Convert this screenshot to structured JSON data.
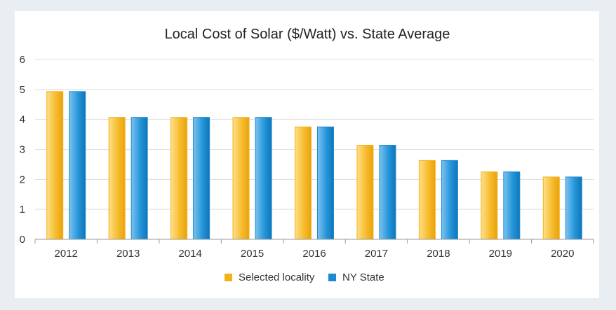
{
  "colors": {
    "background": "#e9eef2",
    "panel": "#ffffff",
    "grid": "#dddddd",
    "axis": "#999999"
  },
  "chart_data": {
    "type": "bar",
    "title": "Local Cost of Solar ($/Watt) vs. State Average",
    "xlabel": "",
    "ylabel": "",
    "ylim": [
      0,
      6
    ],
    "yticks": [
      "0",
      "1",
      "2",
      "3",
      "4",
      "5",
      "6"
    ],
    "grid": true,
    "legend_position": "bottom",
    "categories": [
      "2012",
      "2013",
      "2014",
      "2015",
      "2016",
      "2017",
      "2018",
      "2019",
      "2020"
    ],
    "series": [
      {
        "name": "Selected locality",
        "color": "#f5b11a",
        "values": [
          4.93,
          4.07,
          4.07,
          4.07,
          3.75,
          3.14,
          2.63,
          2.25,
          2.08
        ]
      },
      {
        "name": "NY State",
        "color": "#1b8ad0",
        "values": [
          4.93,
          4.07,
          4.07,
          4.07,
          3.75,
          3.14,
          2.63,
          2.25,
          2.08
        ]
      }
    ]
  }
}
